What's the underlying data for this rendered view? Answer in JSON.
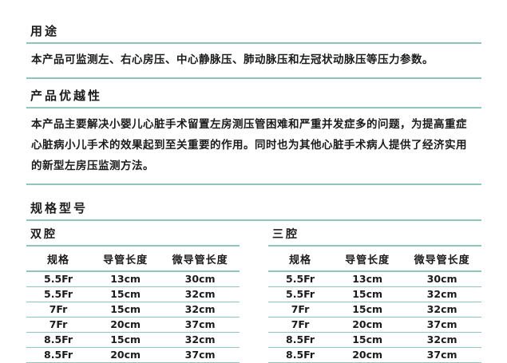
{
  "colors": {
    "rule_line": "#8fc5bb",
    "text": "#1b1b1b",
    "background": "#ffffff"
  },
  "sections": {
    "usage": {
      "title": "用途",
      "body": "本产品可监测左、右心房压、中心静脉压、肺动脉压和左冠状动脉压等压力参数。"
    },
    "advantages": {
      "title": "产品优越性",
      "body": "本产品主要解决小婴儿心脏手术留置左房测压管困难和严重并发症多的问题，为提高重症心脏病小儿手术的效果起到至关重要的作用。同时也为其他心脏手术病人提供了经济实用的新型左房压监测方法。"
    },
    "specs": {
      "title": "规格型号"
    }
  },
  "tables": [
    {
      "name": "双腔",
      "headers": [
        "规格",
        "导管长度",
        "微导管长度"
      ],
      "rows": [
        [
          "5.5Fr",
          "13cm",
          "30cm"
        ],
        [
          "5.5Fr",
          "15cm",
          "32cm"
        ],
        [
          "7Fr",
          "15cm",
          "32cm"
        ],
        [
          "7Fr",
          "20cm",
          "37cm"
        ],
        [
          "8.5Fr",
          "15cm",
          "32cm"
        ],
        [
          "8.5Fr",
          "20cm",
          "37cm"
        ]
      ]
    },
    {
      "name": "三腔",
      "headers": [
        "规格",
        "导管长度",
        "微导管长度"
      ],
      "rows": [
        [
          "5.5Fr",
          "13cm",
          "30cm"
        ],
        [
          "5.5Fr",
          "15cm",
          "32cm"
        ],
        [
          "7Fr",
          "15cm",
          "32cm"
        ],
        [
          "7Fr",
          "20cm",
          "37cm"
        ],
        [
          "8.5Fr",
          "15cm",
          "32cm"
        ],
        [
          "8.5Fr",
          "20cm",
          "37cm"
        ]
      ]
    }
  ]
}
